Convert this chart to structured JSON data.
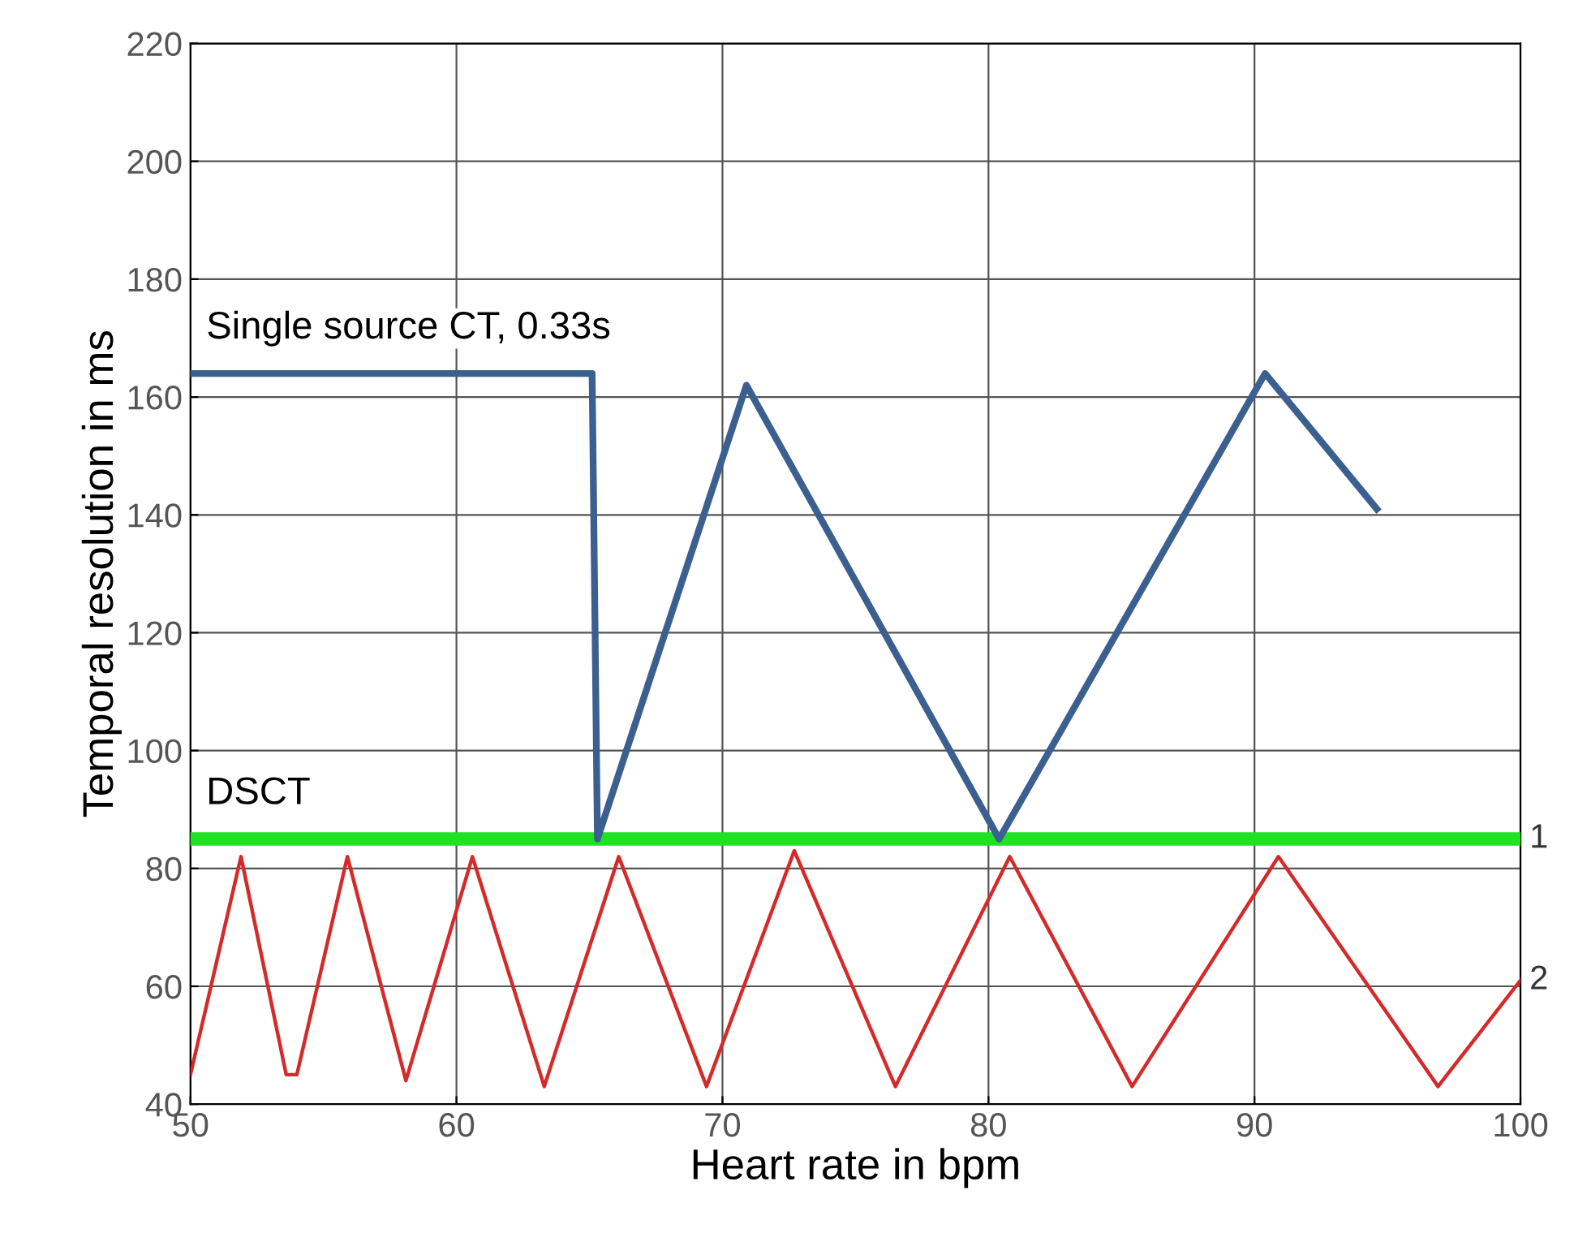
{
  "chart_data": {
    "type": "line",
    "xlabel": "Heart rate in bpm",
    "ylabel": "Temporal resolution in ms",
    "xlim": [
      50,
      100
    ],
    "ylim": [
      40,
      220
    ],
    "xticks": [
      50,
      60,
      70,
      80,
      90,
      100
    ],
    "yticks": [
      40,
      60,
      80,
      100,
      120,
      140,
      160,
      180,
      200,
      220
    ],
    "grid": true,
    "legend": false,
    "marker": "none",
    "line_style": "solid",
    "series": [
      {
        "name": "Single source CT, 0.33s",
        "color": "#3b6090",
        "x": [
          50,
          65.1,
          65.3,
          70.9,
          80.4,
          90.4,
          94.6
        ],
        "values": [
          164,
          164,
          85,
          162,
          85,
          164,
          141
        ]
      },
      {
        "name": "DSCT",
        "color": "#22e022",
        "x": [
          50,
          100
        ],
        "values": [
          85,
          85
        ]
      },
      {
        "color": "#d42a2a",
        "x": [
          50,
          51.9,
          53.6,
          54,
          55.9,
          58.1,
          60.6,
          63.3,
          66.1,
          69.4,
          72.7,
          76.5,
          80.8,
          85.4,
          90.9,
          96.9,
          100
        ],
        "values": [
          45,
          82,
          45,
          45,
          82,
          44,
          82,
          43,
          82,
          43,
          83,
          43,
          82,
          43,
          82,
          43,
          61
        ]
      }
    ],
    "annotations": [
      {
        "text": "1",
        "x": 100,
        "y": 85
      },
      {
        "text": "2",
        "x": 100,
        "y": 61
      }
    ]
  }
}
